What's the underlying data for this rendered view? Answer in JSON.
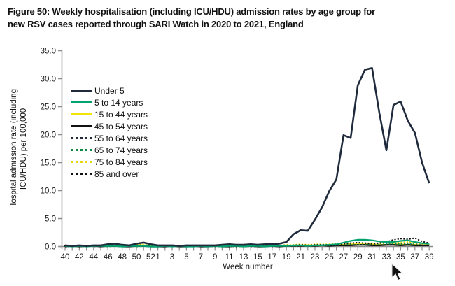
{
  "figure": {
    "title_line1": "Figure 50: Weekly hospitalisation (including ICU/HDU) admission rates by age group for",
    "title_line2": "new RSV cases reported through SARI Watch in 2020 to 2021, England"
  },
  "colors": {
    "axis": "#8c8c8c",
    "text": "#1a1a1a",
    "background": "#ffffff"
  },
  "cursor_icon": "mouse-pointer",
  "chart_data": {
    "type": "line",
    "title": "Figure 50: Weekly hospitalisation (including ICU/HDU) admission rates by age group for new RSV cases reported through SARI Watch in 2020 to 2021, England",
    "xlabel": "Week number",
    "ylabel_line1": "Hospital admission rate (including",
    "ylabel_line2": "ICU/HDU) per 100,000",
    "ylim": [
      0,
      35
    ],
    "y_ticks": [
      0,
      5,
      10,
      15,
      20,
      25,
      30,
      35
    ],
    "grid": false,
    "legend_position": "upper-left-inside",
    "categories": [
      40,
      41,
      42,
      43,
      44,
      45,
      46,
      47,
      48,
      49,
      50,
      51,
      52,
      1,
      2,
      3,
      4,
      5,
      6,
      7,
      8,
      9,
      10,
      11,
      12,
      13,
      14,
      15,
      16,
      17,
      18,
      19,
      20,
      21,
      22,
      23,
      24,
      25,
      26,
      27,
      28,
      29,
      30,
      31,
      32,
      33,
      34,
      35,
      36,
      37,
      38,
      39
    ],
    "series": [
      {
        "name": "Under 5",
        "color": "#1f2b3d",
        "style": "solid",
        "width": 2.6,
        "values": [
          0.2,
          0.1,
          0.2,
          0.1,
          0.2,
          0.2,
          0.4,
          0.5,
          0.3,
          0.2,
          0.5,
          0.7,
          0.4,
          0.2,
          0.2,
          0.2,
          0.1,
          0.2,
          0.2,
          0.2,
          0.2,
          0.2,
          0.3,
          0.4,
          0.3,
          0.3,
          0.4,
          0.3,
          0.4,
          0.4,
          0.5,
          0.8,
          2.2,
          2.9,
          2.8,
          4.8,
          7.0,
          9.9,
          12.0,
          19.9,
          19.4,
          28.8,
          31.6,
          31.9,
          24.0,
          17.2,
          25.3,
          25.9,
          22.5,
          20.3,
          15.0,
          11.3
        ]
      },
      {
        "name": "5 to 14 years",
        "color": "#00a36f",
        "style": "solid",
        "width": 2.2,
        "values": [
          0.1,
          0.0,
          0.1,
          0.0,
          0.1,
          0.1,
          0.1,
          0.1,
          0.0,
          0.1,
          0.1,
          0.1,
          0.0,
          0.0,
          0.1,
          0.0,
          0.1,
          0.0,
          0.0,
          0.1,
          0.0,
          0.1,
          0.0,
          0.1,
          0.1,
          0.0,
          0.1,
          0.1,
          0.0,
          0.1,
          0.1,
          0.1,
          0.2,
          0.2,
          0.1,
          0.2,
          0.2,
          0.3,
          0.4,
          0.7,
          1.0,
          1.2,
          1.2,
          1.1,
          0.9,
          0.8,
          0.8,
          1.0,
          1.1,
          0.8,
          0.6,
          0.5
        ]
      },
      {
        "name": "15 to 44 years",
        "color": "#f2e40a",
        "style": "solid",
        "width": 2.2,
        "values": [
          0.1,
          0.1,
          0.1,
          0.1,
          0.1,
          0.1,
          0.2,
          0.1,
          0.1,
          0.1,
          0.2,
          0.2,
          0.1,
          0.1,
          0.1,
          0.1,
          0.1,
          0.1,
          0.1,
          0.1,
          0.1,
          0.1,
          0.1,
          0.1,
          0.1,
          0.1,
          0.1,
          0.1,
          0.1,
          0.1,
          0.1,
          0.1,
          0.2,
          0.2,
          0.2,
          0.2,
          0.2,
          0.2,
          0.3,
          0.3,
          0.4,
          0.4,
          0.4,
          0.4,
          0.3,
          0.3,
          0.4,
          0.4,
          0.3,
          0.3,
          0.2,
          0.2
        ]
      },
      {
        "name": "45 to 54 years",
        "color": "#111111",
        "style": "solid",
        "width": 2.2,
        "values": [
          0.0,
          0.1,
          0.0,
          0.1,
          0.1,
          0.0,
          0.1,
          0.1,
          0.0,
          0.0,
          0.1,
          0.1,
          0.0,
          0.0,
          0.0,
          0.1,
          0.0,
          0.0,
          0.1,
          0.0,
          0.0,
          0.1,
          0.0,
          0.0,
          0.1,
          0.0,
          0.1,
          0.0,
          0.0,
          0.1,
          0.0,
          0.1,
          0.1,
          0.1,
          0.1,
          0.1,
          0.2,
          0.1,
          0.2,
          0.2,
          0.2,
          0.3,
          0.3,
          0.2,
          0.2,
          0.3,
          0.3,
          0.2,
          0.3,
          0.2,
          0.2,
          0.2
        ]
      },
      {
        "name": "55 to 64 years",
        "color": "#1f2b3d",
        "style": "dotted",
        "width": 2.2,
        "values": [
          0.1,
          0.0,
          0.1,
          0.1,
          0.0,
          0.1,
          0.1,
          0.1,
          0.1,
          0.0,
          0.1,
          0.1,
          0.1,
          0.1,
          0.0,
          0.1,
          0.0,
          0.1,
          0.1,
          0.0,
          0.1,
          0.0,
          0.1,
          0.1,
          0.0,
          0.1,
          0.0,
          0.1,
          0.1,
          0.0,
          0.1,
          0.1,
          0.1,
          0.2,
          0.1,
          0.2,
          0.2,
          0.2,
          0.2,
          0.3,
          0.3,
          0.3,
          0.4,
          0.4,
          0.3,
          0.4,
          0.5,
          0.5,
          0.6,
          0.5,
          0.4,
          0.3
        ]
      },
      {
        "name": "65 to 74 years",
        "color": "#0c8a45",
        "style": "dotted",
        "width": 2.2,
        "values": [
          0.1,
          0.1,
          0.0,
          0.1,
          0.1,
          0.1,
          0.0,
          0.1,
          0.1,
          0.1,
          0.0,
          0.1,
          0.1,
          0.0,
          0.1,
          0.1,
          0.0,
          0.1,
          0.0,
          0.1,
          0.1,
          0.0,
          0.1,
          0.0,
          0.1,
          0.1,
          0.1,
          0.0,
          0.1,
          0.1,
          0.1,
          0.2,
          0.1,
          0.2,
          0.2,
          0.2,
          0.3,
          0.2,
          0.3,
          0.3,
          0.4,
          0.3,
          0.4,
          0.4,
          0.4,
          0.5,
          0.5,
          0.4,
          0.5,
          0.4,
          0.4,
          0.3
        ]
      },
      {
        "name": "75 to 84 years",
        "color": "#e6d800",
        "style": "dotted",
        "width": 2.2,
        "values": [
          0.2,
          0.1,
          0.2,
          0.2,
          0.1,
          0.2,
          0.3,
          0.3,
          0.2,
          0.2,
          0.4,
          0.4,
          0.2,
          0.2,
          0.1,
          0.2,
          0.2,
          0.1,
          0.2,
          0.2,
          0.1,
          0.2,
          0.2,
          0.3,
          0.2,
          0.2,
          0.3,
          0.2,
          0.2,
          0.3,
          0.2,
          0.3,
          0.3,
          0.4,
          0.3,
          0.4,
          0.4,
          0.4,
          0.5,
          0.5,
          0.6,
          0.5,
          0.6,
          0.6,
          0.5,
          0.7,
          0.8,
          0.7,
          0.8,
          0.6,
          0.5,
          0.4
        ]
      },
      {
        "name": "85 and over",
        "color": "#111111",
        "style": "dotted",
        "width": 2.2,
        "values": [
          0.1,
          0.2,
          0.1,
          0.1,
          0.2,
          0.1,
          0.2,
          0.2,
          0.1,
          0.1,
          0.2,
          0.2,
          0.1,
          0.1,
          0.1,
          0.2,
          0.1,
          0.1,
          0.2,
          0.1,
          0.2,
          0.1,
          0.1,
          0.2,
          0.1,
          0.2,
          0.2,
          0.1,
          0.2,
          0.2,
          0.2,
          0.2,
          0.2,
          0.3,
          0.2,
          0.3,
          0.3,
          0.3,
          0.4,
          0.5,
          0.6,
          0.7,
          0.6,
          0.5,
          0.6,
          0.8,
          1.2,
          1.4,
          1.3,
          1.5,
          0.9,
          0.6
        ]
      }
    ]
  }
}
